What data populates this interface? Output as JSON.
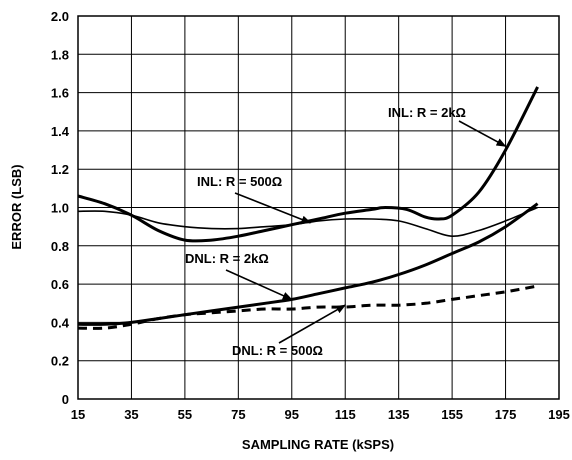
{
  "chart_data": {
    "type": "line",
    "xlabel": "SAMPLING RATE (kSPS)",
    "ylabel": "ERROR (LSB)",
    "xlim": [
      15,
      195
    ],
    "ylim": [
      0,
      2.0
    ],
    "x_ticks": [
      "15",
      "35",
      "55",
      "75",
      "95",
      "115",
      "135",
      "155",
      "175",
      "195"
    ],
    "y_ticks": [
      "0",
      "0.2",
      "0.4",
      "0.6",
      "0.8",
      "1.0",
      "1.2",
      "1.4",
      "1.6",
      "1.8",
      "2.0"
    ],
    "grid": true,
    "series": [
      {
        "name": "INL: R = 2kΩ",
        "style": "thick-solid",
        "points": [
          [
            15,
            1.06
          ],
          [
            25,
            1.02
          ],
          [
            35,
            0.96
          ],
          [
            45,
            0.88
          ],
          [
            55,
            0.83
          ],
          [
            65,
            0.83
          ],
          [
            75,
            0.85
          ],
          [
            85,
            0.88
          ],
          [
            95,
            0.91
          ],
          [
            105,
            0.94
          ],
          [
            115,
            0.97
          ],
          [
            125,
            0.99
          ],
          [
            130,
            1.0
          ],
          [
            138,
            0.99
          ],
          [
            145,
            0.95
          ],
          [
            150,
            0.94
          ],
          [
            155,
            0.96
          ],
          [
            165,
            1.08
          ],
          [
            175,
            1.3
          ],
          [
            187,
            1.63
          ]
        ]
      },
      {
        "name": "INL: R = 500Ω",
        "style": "thin-solid",
        "points": [
          [
            15,
            0.98
          ],
          [
            25,
            0.98
          ],
          [
            35,
            0.96
          ],
          [
            45,
            0.92
          ],
          [
            55,
            0.9
          ],
          [
            65,
            0.89
          ],
          [
            75,
            0.89
          ],
          [
            85,
            0.9
          ],
          [
            95,
            0.91
          ],
          [
            105,
            0.93
          ],
          [
            115,
            0.94
          ],
          [
            125,
            0.94
          ],
          [
            135,
            0.93
          ],
          [
            145,
            0.89
          ],
          [
            155,
            0.85
          ],
          [
            165,
            0.88
          ],
          [
            175,
            0.93
          ],
          [
            187,
            1.0
          ]
        ]
      },
      {
        "name": "DNL: R = 2kΩ",
        "style": "thick-solid",
        "points": [
          [
            15,
            0.39
          ],
          [
            25,
            0.39
          ],
          [
            35,
            0.4
          ],
          [
            45,
            0.42
          ],
          [
            55,
            0.44
          ],
          [
            65,
            0.46
          ],
          [
            75,
            0.48
          ],
          [
            85,
            0.5
          ],
          [
            95,
            0.52
          ],
          [
            105,
            0.55
          ],
          [
            115,
            0.58
          ],
          [
            125,
            0.61
          ],
          [
            135,
            0.65
          ],
          [
            145,
            0.7
          ],
          [
            155,
            0.76
          ],
          [
            165,
            0.82
          ],
          [
            175,
            0.9
          ],
          [
            187,
            1.02
          ]
        ]
      },
      {
        "name": "DNL: R = 500Ω",
        "style": "dashed",
        "points": [
          [
            15,
            0.37
          ],
          [
            25,
            0.37
          ],
          [
            35,
            0.39
          ],
          [
            45,
            0.42
          ],
          [
            55,
            0.44
          ],
          [
            65,
            0.45
          ],
          [
            75,
            0.46
          ],
          [
            85,
            0.47
          ],
          [
            95,
            0.47
          ],
          [
            105,
            0.48
          ],
          [
            115,
            0.48
          ],
          [
            125,
            0.49
          ],
          [
            135,
            0.49
          ],
          [
            145,
            0.5
          ],
          [
            155,
            0.52
          ],
          [
            165,
            0.54
          ],
          [
            175,
            0.56
          ],
          [
            187,
            0.59
          ]
        ]
      }
    ],
    "annotations": [
      {
        "text": "INL: R = 2kΩ",
        "target": [
          175,
          1.32
        ]
      },
      {
        "text": "INL: R = 500Ω",
        "target": [
          102,
          0.92
        ]
      },
      {
        "text": "DNL: R = 2kΩ",
        "target": [
          95,
          0.52
        ]
      },
      {
        "text": "DNL: R = 500Ω",
        "target": [
          115,
          0.49
        ]
      }
    ]
  }
}
